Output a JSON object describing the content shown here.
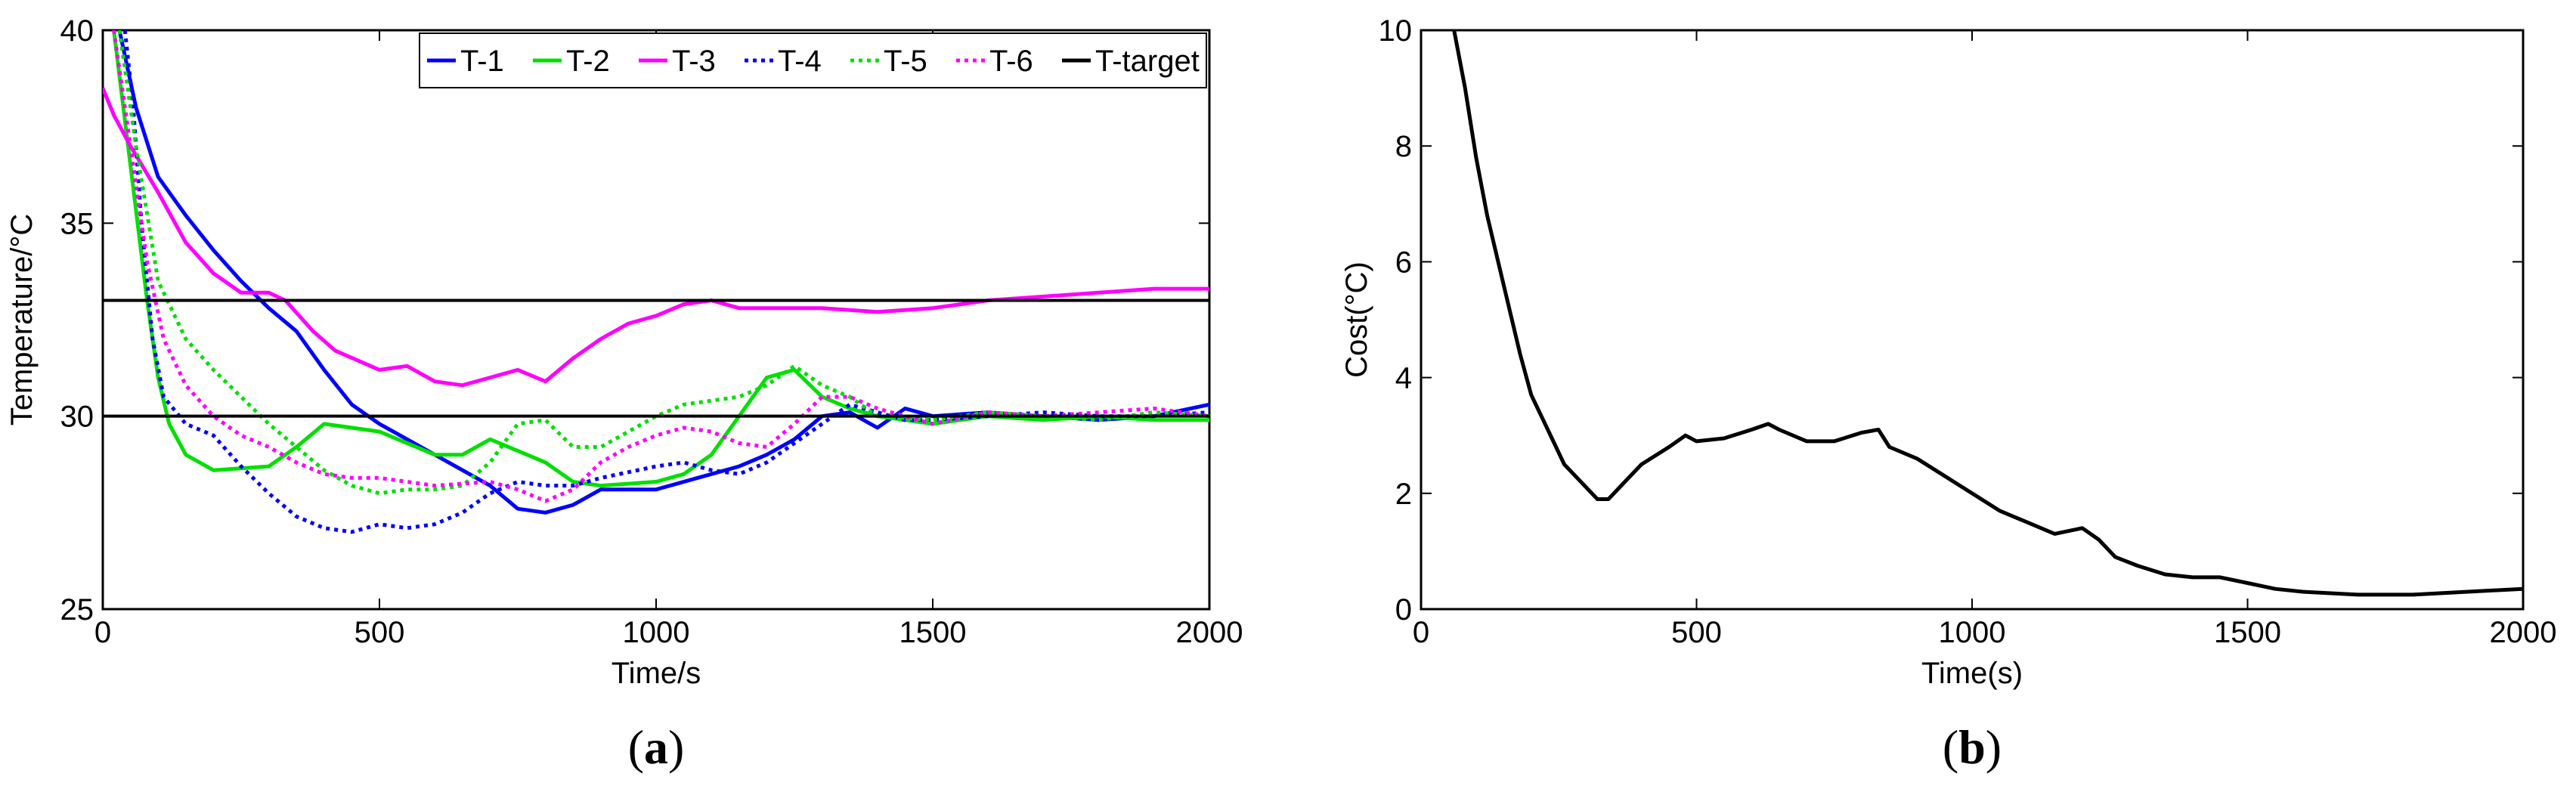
{
  "chart_data": [
    {
      "type": "line",
      "panel_label": {
        "open": "(",
        "letter": "a",
        "close": ")"
      },
      "xlabel": "Time/s",
      "ylabel": "Temperature/°C",
      "xlim": [
        0,
        2000
      ],
      "ylim": [
        25,
        40
      ],
      "xticks": [
        0,
        500,
        1000,
        1500,
        2000
      ],
      "yticks": [
        25,
        30,
        35,
        40
      ],
      "legend_position": "top-right",
      "series": [
        {
          "name": "T-1",
          "color": "#0000ff",
          "style": "solid",
          "points": [
            [
              30,
              40
            ],
            [
              60,
              38
            ],
            [
              100,
              36.2
            ],
            [
              150,
              35.2
            ],
            [
              200,
              34.3
            ],
            [
              250,
              33.5
            ],
            [
              300,
              32.8
            ],
            [
              350,
              32.2
            ],
            [
              400,
              31.2
            ],
            [
              450,
              30.3
            ],
            [
              500,
              29.8
            ],
            [
              600,
              29
            ],
            [
              700,
              28.2
            ],
            [
              750,
              27.6
            ],
            [
              800,
              27.5
            ],
            [
              850,
              27.7
            ],
            [
              900,
              28.1
            ],
            [
              1000,
              28.1
            ],
            [
              1100,
              28.5
            ],
            [
              1150,
              28.7
            ],
            [
              1200,
              29
            ],
            [
              1250,
              29.4
            ],
            [
              1300,
              30
            ],
            [
              1350,
              30.1
            ],
            [
              1400,
              29.7
            ],
            [
              1450,
              30.2
            ],
            [
              1500,
              30
            ],
            [
              1600,
              30.1
            ],
            [
              1700,
              30
            ],
            [
              1800,
              29.9
            ],
            [
              1900,
              30
            ],
            [
              2000,
              30.3
            ]
          ]
        },
        {
          "name": "T-2",
          "color": "#00e000",
          "style": "solid",
          "points": [
            [
              20,
              40
            ],
            [
              50,
              36.5
            ],
            [
              80,
              33
            ],
            [
              100,
              31
            ],
            [
              120,
              29.8
            ],
            [
              150,
              29
            ],
            [
              200,
              28.6
            ],
            [
              300,
              28.7
            ],
            [
              350,
              29.2
            ],
            [
              400,
              29.8
            ],
            [
              500,
              29.6
            ],
            [
              600,
              29
            ],
            [
              650,
              29
            ],
            [
              700,
              29.4
            ],
            [
              750,
              29.1
            ],
            [
              800,
              28.8
            ],
            [
              850,
              28.3
            ],
            [
              900,
              28.2
            ],
            [
              1000,
              28.3
            ],
            [
              1050,
              28.5
            ],
            [
              1100,
              29
            ],
            [
              1150,
              30
            ],
            [
              1200,
              31
            ],
            [
              1250,
              31.2
            ],
            [
              1300,
              30.5
            ],
            [
              1350,
              30.2
            ],
            [
              1400,
              30
            ],
            [
              1500,
              29.8
            ],
            [
              1600,
              30
            ],
            [
              1700,
              29.9
            ],
            [
              1800,
              30
            ],
            [
              1900,
              29.9
            ],
            [
              2000,
              29.9
            ]
          ]
        },
        {
          "name": "T-3",
          "color": "#ff00ff",
          "style": "solid",
          "points": [
            [
              0,
              38.5
            ],
            [
              20,
              37.8
            ],
            [
              50,
              37
            ],
            [
              100,
              35.8
            ],
            [
              150,
              34.5
            ],
            [
              200,
              33.7
            ],
            [
              250,
              33.2
            ],
            [
              300,
              33.2
            ],
            [
              330,
              33
            ],
            [
              380,
              32.2
            ],
            [
              420,
              31.7
            ],
            [
              500,
              31.2
            ],
            [
              550,
              31.3
            ],
            [
              600,
              30.9
            ],
            [
              650,
              30.8
            ],
            [
              700,
              31
            ],
            [
              750,
              31.2
            ],
            [
              800,
              30.9
            ],
            [
              850,
              31.5
            ],
            [
              900,
              32
            ],
            [
              950,
              32.4
            ],
            [
              1000,
              32.6
            ],
            [
              1050,
              32.9
            ],
            [
              1100,
              33
            ],
            [
              1150,
              32.8
            ],
            [
              1200,
              32.8
            ],
            [
              1300,
              32.8
            ],
            [
              1400,
              32.7
            ],
            [
              1500,
              32.8
            ],
            [
              1600,
              33
            ],
            [
              1700,
              33.1
            ],
            [
              1800,
              33.2
            ],
            [
              1900,
              33.3
            ],
            [
              2000,
              33.3
            ]
          ]
        },
        {
          "name": "T-4",
          "color": "#0000ff",
          "style": "dotted",
          "points": [
            [
              40,
              40
            ],
            [
              55,
              38
            ],
            [
              70,
              35
            ],
            [
              90,
              32
            ],
            [
              110,
              30.5
            ],
            [
              150,
              29.8
            ],
            [
              200,
              29.5
            ],
            [
              250,
              28.7
            ],
            [
              300,
              28
            ],
            [
              350,
              27.4
            ],
            [
              400,
              27.1
            ],
            [
              450,
              27
            ],
            [
              500,
              27.2
            ],
            [
              550,
              27.1
            ],
            [
              600,
              27.2
            ],
            [
              650,
              27.5
            ],
            [
              700,
              28
            ],
            [
              750,
              28.3
            ],
            [
              800,
              28.2
            ],
            [
              850,
              28.2
            ],
            [
              900,
              28.4
            ],
            [
              1000,
              28.7
            ],
            [
              1050,
              28.8
            ],
            [
              1100,
              28.6
            ],
            [
              1150,
              28.5
            ],
            [
              1200,
              28.8
            ],
            [
              1250,
              29.3
            ],
            [
              1300,
              29.8
            ],
            [
              1350,
              30.3
            ],
            [
              1400,
              30.1
            ],
            [
              1450,
              29.9
            ],
            [
              1500,
              29.9
            ],
            [
              1600,
              30
            ],
            [
              1700,
              30.1
            ],
            [
              1800,
              30
            ],
            [
              1900,
              30
            ],
            [
              2000,
              30.1
            ]
          ]
        },
        {
          "name": "T-5",
          "color": "#00e000",
          "style": "dotted",
          "points": [
            [
              30,
              40
            ],
            [
              60,
              37
            ],
            [
              100,
              33.5
            ],
            [
              150,
              32
            ],
            [
              200,
              31.2
            ],
            [
              250,
              30.5
            ],
            [
              300,
              29.8
            ],
            [
              350,
              29.2
            ],
            [
              400,
              28.6
            ],
            [
              450,
              28.2
            ],
            [
              500,
              28
            ],
            [
              550,
              28.1
            ],
            [
              600,
              28.1
            ],
            [
              650,
              28.2
            ],
            [
              700,
              28.8
            ],
            [
              750,
              29.8
            ],
            [
              800,
              29.9
            ],
            [
              850,
              29.2
            ],
            [
              900,
              29.2
            ],
            [
              1000,
              30
            ],
            [
              1050,
              30.3
            ],
            [
              1100,
              30.4
            ],
            [
              1150,
              30.5
            ],
            [
              1200,
              30.8
            ],
            [
              1250,
              31.3
            ],
            [
              1300,
              30.8
            ],
            [
              1350,
              30.5
            ],
            [
              1400,
              30
            ],
            [
              1500,
              29.9
            ],
            [
              1600,
              30.1
            ],
            [
              1700,
              30
            ],
            [
              1800,
              29.9
            ],
            [
              1900,
              30.1
            ],
            [
              2000,
              30
            ]
          ]
        },
        {
          "name": "T-6",
          "color": "#ff00ff",
          "style": "dotted",
          "points": [
            [
              20,
              40
            ],
            [
              50,
              37
            ],
            [
              80,
              34
            ],
            [
              110,
              32
            ],
            [
              150,
              30.8
            ],
            [
              200,
              30
            ],
            [
              250,
              29.5
            ],
            [
              300,
              29.2
            ],
            [
              350,
              28.8
            ],
            [
              400,
              28.5
            ],
            [
              450,
              28.4
            ],
            [
              500,
              28.4
            ],
            [
              600,
              28.2
            ],
            [
              700,
              28.3
            ],
            [
              750,
              28.1
            ],
            [
              800,
              27.8
            ],
            [
              850,
              28.1
            ],
            [
              900,
              28.8
            ],
            [
              950,
              29.2
            ],
            [
              1000,
              29.5
            ],
            [
              1050,
              29.7
            ],
            [
              1100,
              29.6
            ],
            [
              1150,
              29.3
            ],
            [
              1200,
              29.2
            ],
            [
              1250,
              29.8
            ],
            [
              1300,
              30.5
            ],
            [
              1350,
              30.5
            ],
            [
              1400,
              30.2
            ],
            [
              1450,
              30
            ],
            [
              1500,
              29.8
            ],
            [
              1600,
              30.1
            ],
            [
              1700,
              30
            ],
            [
              1800,
              30.1
            ],
            [
              1900,
              30.2
            ],
            [
              2000,
              30
            ]
          ]
        },
        {
          "name": "T-target",
          "color": "#000000",
          "style": "solid",
          "lines": [
            33,
            30
          ]
        }
      ]
    },
    {
      "type": "line",
      "panel_label": {
        "open": "(",
        "letter": "b",
        "close": ")"
      },
      "xlabel": "Time(s)",
      "ylabel": "Cost(°C)",
      "xlim": [
        0,
        2000
      ],
      "ylim": [
        0,
        10
      ],
      "xticks": [
        0,
        500,
        1000,
        1500,
        2000
      ],
      "yticks": [
        0,
        2,
        4,
        6,
        8,
        10
      ],
      "series": [
        {
          "color": "#000000",
          "style": "solid",
          "points": [
            [
              60,
              10
            ],
            [
              80,
              9
            ],
            [
              100,
              7.8
            ],
            [
              120,
              6.8
            ],
            [
              150,
              5.6
            ],
            [
              180,
              4.4
            ],
            [
              200,
              3.7
            ],
            [
              230,
              3.1
            ],
            [
              260,
              2.5
            ],
            [
              300,
              2.1
            ],
            [
              320,
              1.9
            ],
            [
              340,
              1.9
            ],
            [
              370,
              2.2
            ],
            [
              400,
              2.5
            ],
            [
              450,
              2.8
            ],
            [
              480,
              3
            ],
            [
              500,
              2.9
            ],
            [
              550,
              2.95
            ],
            [
              600,
              3.1
            ],
            [
              630,
              3.2
            ],
            [
              650,
              3.1
            ],
            [
              700,
              2.9
            ],
            [
              750,
              2.9
            ],
            [
              800,
              3.05
            ],
            [
              830,
              3.1
            ],
            [
              850,
              2.8
            ],
            [
              900,
              2.6
            ],
            [
              950,
              2.3
            ],
            [
              1000,
              2
            ],
            [
              1050,
              1.7
            ],
            [
              1100,
              1.5
            ],
            [
              1150,
              1.3
            ],
            [
              1200,
              1.4
            ],
            [
              1230,
              1.2
            ],
            [
              1260,
              0.9
            ],
            [
              1300,
              0.75
            ],
            [
              1350,
              0.6
            ],
            [
              1400,
              0.55
            ],
            [
              1450,
              0.55
            ],
            [
              1500,
              0.45
            ],
            [
              1550,
              0.35
            ],
            [
              1600,
              0.3
            ],
            [
              1700,
              0.25
            ],
            [
              1800,
              0.25
            ],
            [
              1900,
              0.3
            ],
            [
              2000,
              0.35
            ]
          ]
        }
      ]
    }
  ]
}
